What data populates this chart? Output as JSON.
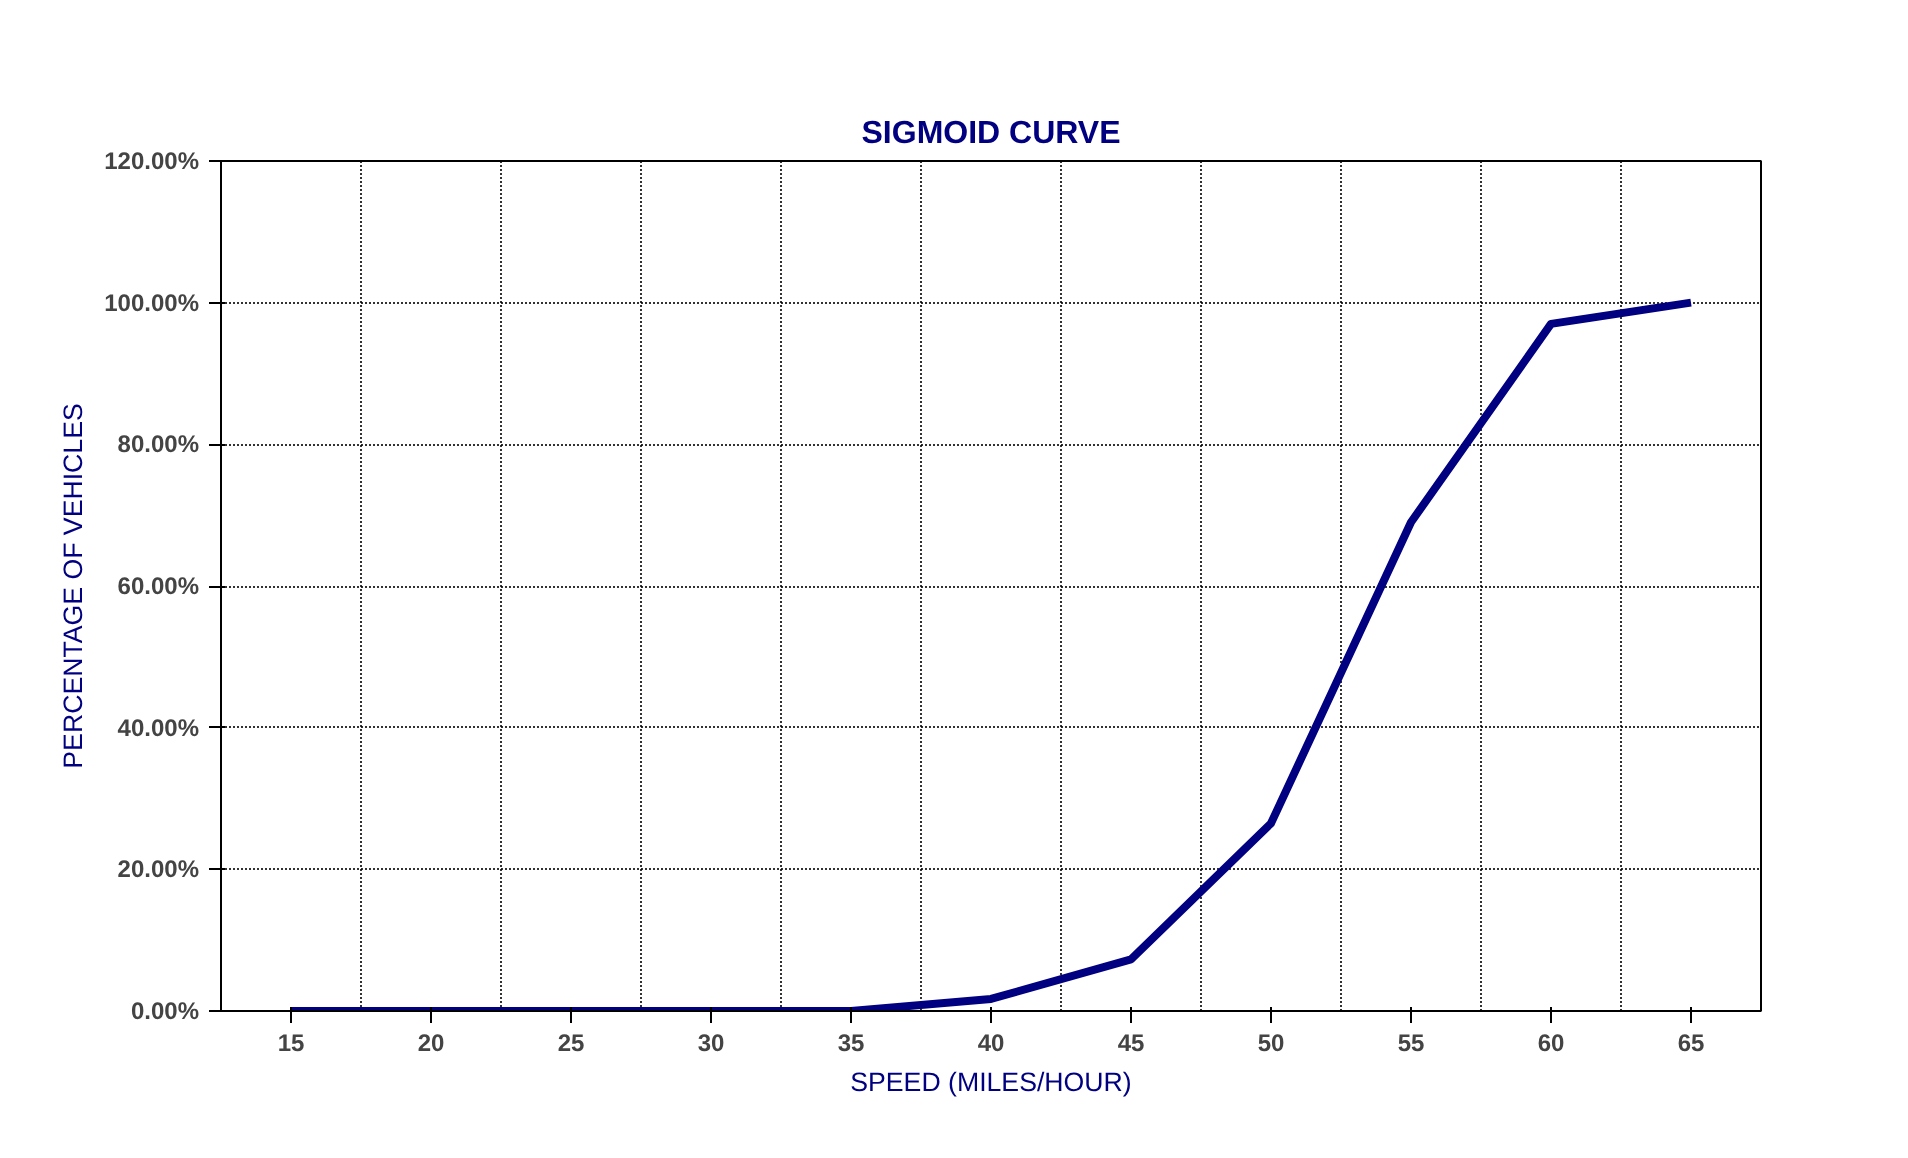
{
  "chart_data": {
    "type": "line",
    "title": "SIGMOID CURVE",
    "xlabel": "SPEED (MILES/HOUR)",
    "ylabel": "PERCENTAGE OF VEHICLES",
    "categories": [
      "15",
      "20",
      "25",
      "30",
      "35",
      "40",
      "45",
      "50",
      "55",
      "60",
      "65"
    ],
    "series": [
      {
        "color": "#000080",
        "values": [
          0,
          0,
          0,
          0,
          0,
          1.7,
          7.3,
          26.5,
          69,
          97,
          100
        ]
      }
    ],
    "ylim": [
      0,
      120
    ],
    "yticks": [
      {
        "value": 0,
        "label": "0.00%"
      },
      {
        "value": 20,
        "label": "20.00%"
      },
      {
        "value": 40,
        "label": "40.00%"
      },
      {
        "value": 60,
        "label": "60.00%"
      },
      {
        "value": 80,
        "label": "80.00%"
      },
      {
        "value": 100,
        "label": "100.00%"
      },
      {
        "value": 120,
        "label": "120.00%"
      }
    ],
    "grid": true,
    "line_style": "solid",
    "marker": "none"
  }
}
